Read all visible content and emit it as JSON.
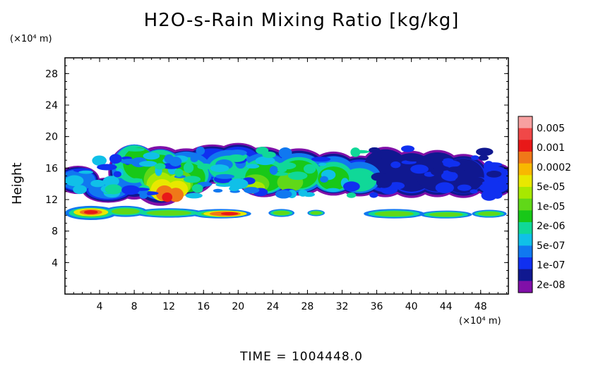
{
  "title": "H2O-s-Rain Mixing Ratio [kg/kg]",
  "y_unit": "(×10⁴ m)",
  "x_unit": "(×10⁴ m)",
  "ylabel": "Height",
  "time_label": "TIME = 1004448.0",
  "chart_data": {
    "type": "heatmap",
    "title": "H2O-s-Rain Mixing Ratio [kg/kg]",
    "xlabel": "",
    "ylabel": "Height",
    "x_unit": "(×10⁴ m)",
    "y_unit": "(×10⁴ m)",
    "xlim": [
      0,
      51.2
    ],
    "ylim": [
      0,
      30
    ],
    "x_ticks": [
      "4",
      "8",
      "12",
      "16",
      "20",
      "24",
      "28",
      "32",
      "36",
      "40",
      "44",
      "48"
    ],
    "y_ticks": [
      "4",
      "8",
      "12",
      "16",
      "20",
      "24",
      "28"
    ],
    "legend": {
      "placement": "right",
      "labels": [
        "0.005",
        "0.001",
        "0.0002",
        "5e-05",
        "1e-05",
        "2e-06",
        "5e-07",
        "1e-07",
        "2e-08"
      ],
      "colors": [
        "#f7a0a0",
        "#f04848",
        "#e81818",
        "#f07818",
        "#f8b800",
        "#e8e800",
        "#a8e800",
        "#60d818",
        "#18c818",
        "#10d898",
        "#10c0e8",
        "#1078f0",
        "#1030f0",
        "#101890",
        "#8010a8"
      ]
    },
    "regions": [
      {
        "name": "upper cloud band",
        "x": [
          0,
          51.2
        ],
        "y": [
          11.5,
          20
        ],
        "max_level": "0.001"
      },
      {
        "name": "lower layer",
        "x": [
          0,
          51.2
        ],
        "y": [
          9.5,
          11
        ],
        "max_level": "0.001"
      }
    ]
  }
}
